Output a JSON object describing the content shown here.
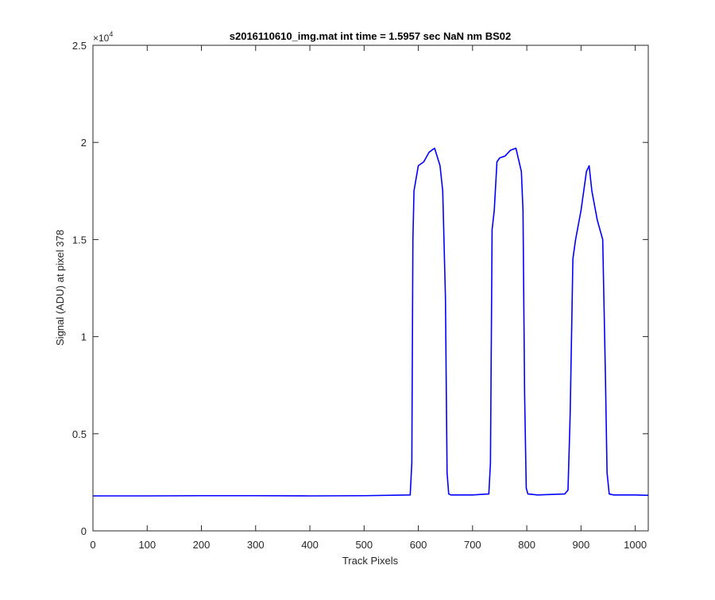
{
  "chart_data": {
    "type": "line",
    "title": "s2016110610_img.mat int time = 1.5957 sec  NaN nm BS02",
    "xlabel": "Track Pixels",
    "ylabel": "Signal (ADU) at pixel 378",
    "xlim": [
      0,
      1024
    ],
    "ylim": [
      0,
      25000
    ],
    "y_exponent_label": "×10",
    "y_exponent_power": "4",
    "x_ticks": [
      0,
      100,
      200,
      300,
      400,
      500,
      600,
      700,
      800,
      900,
      1000
    ],
    "x_tick_labels": [
      "0",
      "100",
      "200",
      "300",
      "400",
      "500",
      "600",
      "700",
      "800",
      "900",
      "1000"
    ],
    "y_ticks": [
      0,
      5000,
      10000,
      15000,
      20000,
      25000
    ],
    "y_tick_labels": [
      "0",
      "0.5",
      "1",
      "1.5",
      "2",
      "2.5"
    ],
    "grid": false,
    "line_color": "#0000ff",
    "series": [
      {
        "x": [
          0,
          100,
          200,
          300,
          400,
          500,
          585,
          588,
          590,
          592,
          595,
          600,
          610,
          620,
          630,
          640,
          645,
          650,
          653,
          656,
          660,
          700,
          730,
          733,
          736,
          740,
          745,
          750,
          760,
          770,
          780,
          790,
          793,
          796,
          799,
          802,
          820,
          870,
          876,
          880,
          885,
          890,
          900,
          910,
          915,
          920,
          930,
          940,
          945,
          948,
          952,
          960,
          1000,
          1024
        ],
        "y": [
          1800,
          1800,
          1810,
          1810,
          1800,
          1810,
          1850,
          3500,
          15000,
          17500,
          18000,
          18800,
          19000,
          19500,
          19700,
          18800,
          17500,
          12000,
          3000,
          1900,
          1850,
          1850,
          1900,
          3500,
          15500,
          16500,
          19000,
          19200,
          19300,
          19600,
          19700,
          18500,
          16500,
          7000,
          2200,
          1900,
          1850,
          1900,
          2100,
          6000,
          14000,
          15000,
          16500,
          18500,
          18800,
          17500,
          16000,
          15000,
          8000,
          3000,
          1900,
          1850,
          1850,
          1830
        ]
      }
    ]
  }
}
